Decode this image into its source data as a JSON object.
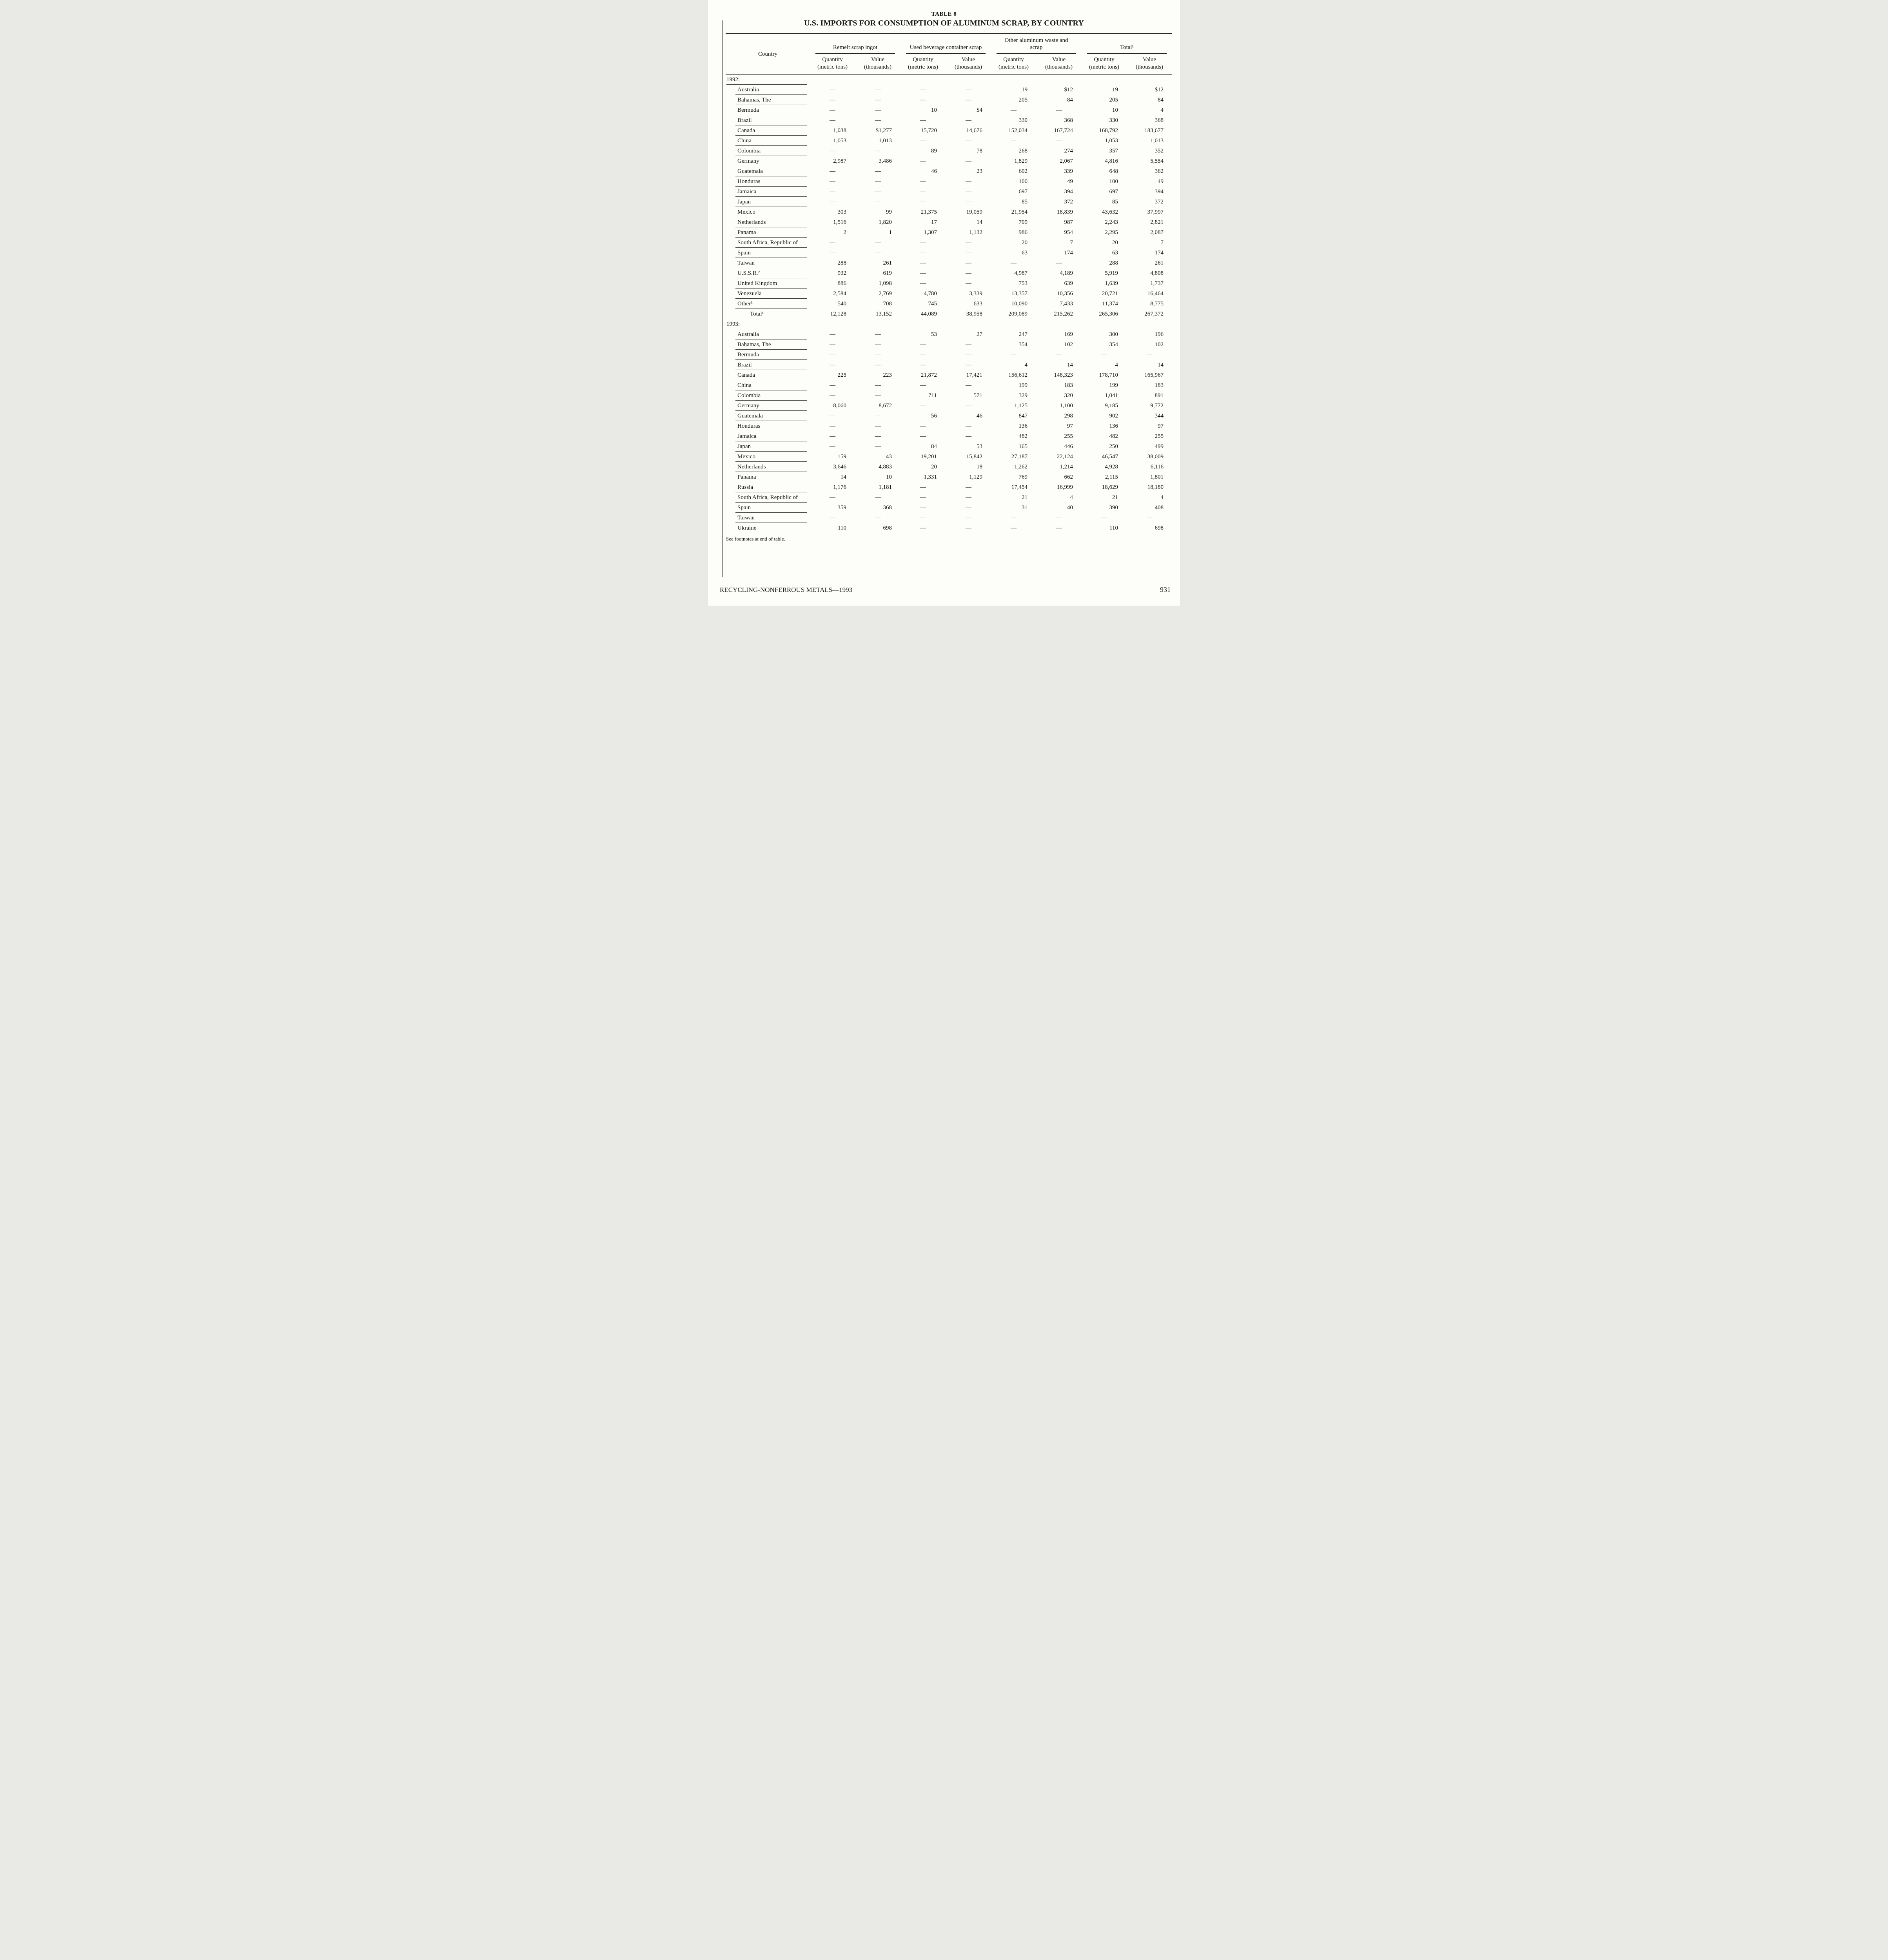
{
  "page": {
    "table_label": "TABLE 8",
    "title": "U.S. IMPORTS FOR CONSUMPTION OF ALUMINUM SCRAP, BY COUNTRY",
    "footnote": "See footnotes at end of table.",
    "footer_left": "RECYCLING-NONFERROUS METALS—1993",
    "page_number": "931"
  },
  "table": {
    "country_header": "Country",
    "col_groups": [
      {
        "label": "Remelt scrap ingot"
      },
      {
        "label": "Used beverage container scrap"
      },
      {
        "label": "Other aluminum waste and scrap"
      },
      {
        "label": "Total¹"
      }
    ],
    "sub_headers": {
      "quantity_1": "Quantity",
      "quantity_2": "(metric tons)",
      "value_1": "Value",
      "value_2": "(thousands)"
    },
    "sections": [
      {
        "year_label": "1992:",
        "rows": [
          {
            "country": "Australia",
            "values": [
              "—",
              "—",
              "—",
              "—",
              "19",
              "$12",
              "19",
              "$12"
            ]
          },
          {
            "country": "Bahamas, The",
            "values": [
              "—",
              "—",
              "—",
              "—",
              "205",
              "84",
              "205",
              "84"
            ]
          },
          {
            "country": "Bermuda",
            "values": [
              "—",
              "—",
              "10",
              "$4",
              "—",
              "—",
              "10",
              "4"
            ]
          },
          {
            "country": "Brazil",
            "values": [
              "—",
              "—",
              "—",
              "—",
              "330",
              "368",
              "330",
              "368"
            ]
          },
          {
            "country": "Canada",
            "values": [
              "1,038",
              "$1,277",
              "15,720",
              "14,676",
              "152,034",
              "167,724",
              "168,792",
              "183,677"
            ]
          },
          {
            "country": "China",
            "values": [
              "1,053",
              "1,013",
              "—",
              "—",
              "—",
              "—",
              "1,053",
              "1,013"
            ]
          },
          {
            "country": "Colombia",
            "values": [
              "—",
              "—",
              "89",
              "78",
              "268",
              "274",
              "357",
              "352"
            ]
          },
          {
            "country": "Germany",
            "values": [
              "2,987",
              "3,486",
              "—",
              "—",
              "1,829",
              "2,067",
              "4,816",
              "5,554"
            ]
          },
          {
            "country": "Guatemala",
            "values": [
              "—",
              "—",
              "46",
              "23",
              "602",
              "339",
              "648",
              "362"
            ]
          },
          {
            "country": "Honduras",
            "values": [
              "—",
              "—",
              "—",
              "—",
              "100",
              "49",
              "100",
              "49"
            ]
          },
          {
            "country": "Jamaica",
            "values": [
              "—",
              "—",
              "—",
              "—",
              "697",
              "394",
              "697",
              "394"
            ]
          },
          {
            "country": "Japan",
            "values": [
              "—",
              "—",
              "—",
              "—",
              "85",
              "372",
              "85",
              "372"
            ]
          },
          {
            "country": "Mexico",
            "values": [
              "303",
              "99",
              "21,375",
              "19,059",
              "21,954",
              "18,839",
              "43,632",
              "37,997"
            ]
          },
          {
            "country": "Netherlands",
            "values": [
              "1,516",
              "1,820",
              "17",
              "14",
              "709",
              "987",
              "2,243",
              "2,821"
            ]
          },
          {
            "country": "Panama",
            "values": [
              "2",
              "1",
              "1,307",
              "1,132",
              "986",
              "954",
              "2,295",
              "2,087"
            ]
          },
          {
            "country": "South Africa, Republic of",
            "values": [
              "—",
              "—",
              "—",
              "—",
              "20",
              "7",
              "20",
              "7"
            ]
          },
          {
            "country": "Spain",
            "values": [
              "—",
              "—",
              "—",
              "—",
              "63",
              "174",
              "63",
              "174"
            ]
          },
          {
            "country": "Taiwan",
            "values": [
              "288",
              "261",
              "—",
              "—",
              "—",
              "—",
              "288",
              "261"
            ]
          },
          {
            "country": "U.S.S.R.²",
            "values": [
              "932",
              "619",
              "—",
              "—",
              "4,987",
              "4,189",
              "5,919",
              "4,808"
            ]
          },
          {
            "country": "United Kingdom",
            "values": [
              "886",
              "1,098",
              "—",
              "—",
              "753",
              "639",
              "1,639",
              "1,737"
            ]
          },
          {
            "country": "Venezuela",
            "values": [
              "2,584",
              "2,769",
              "4,780",
              "3,339",
              "13,357",
              "10,356",
              "20,721",
              "16,464"
            ]
          },
          {
            "country": "Other³",
            "values": [
              "540",
              "708",
              "745",
              "633",
              "10,090",
              "7,433",
              "11,374",
              "8,775"
            ]
          }
        ],
        "total_row": {
          "country": "Total¹",
          "values": [
            "12,128",
            "13,152",
            "44,089",
            "38,958",
            "209,089",
            "215,262",
            "265,306",
            "267,372"
          ]
        }
      },
      {
        "year_label": "1993:",
        "rows": [
          {
            "country": "Australia",
            "values": [
              "—",
              "—",
              "53",
              "27",
              "247",
              "169",
              "300",
              "196"
            ]
          },
          {
            "country": "Bahamas, The",
            "values": [
              "—",
              "—",
              "—",
              "—",
              "354",
              "102",
              "354",
              "102"
            ]
          },
          {
            "country": "Bermuda",
            "values": [
              "—",
              "—",
              "—",
              "—",
              "—",
              "—",
              "—",
              "—"
            ]
          },
          {
            "country": "Brazil",
            "values": [
              "—",
              "—",
              "—",
              "—",
              "4",
              "14",
              "4",
              "14"
            ]
          },
          {
            "country": "Canada",
            "values": [
              "225",
              "223",
              "21,872",
              "17,421",
              "156,612",
              "148,323",
              "178,710",
              "165,967"
            ]
          },
          {
            "country": "China",
            "values": [
              "—",
              "—",
              "—",
              "—",
              "199",
              "183",
              "199",
              "183"
            ]
          },
          {
            "country": "Colombia",
            "values": [
              "—",
              "—",
              "711",
              "571",
              "329",
              "320",
              "1,041",
              "891"
            ]
          },
          {
            "country": "Germany",
            "values": [
              "8,060",
              "8,672",
              "—",
              "—",
              "1,125",
              "1,100",
              "9,185",
              "9,772"
            ]
          },
          {
            "country": "Guatemala",
            "values": [
              "—",
              "—",
              "56",
              "46",
              "847",
              "298",
              "902",
              "344"
            ]
          },
          {
            "country": "Honduras",
            "values": [
              "—",
              "—",
              "—",
              "—",
              "136",
              "97",
              "136",
              "97"
            ]
          },
          {
            "country": "Jamaica",
            "values": [
              "—",
              "—",
              "—",
              "—",
              "482",
              "255",
              "482",
              "255"
            ]
          },
          {
            "country": "Japan",
            "values": [
              "—",
              "—",
              "84",
              "53",
              "165",
              "446",
              "250",
              "499"
            ]
          },
          {
            "country": "Mexico",
            "values": [
              "159",
              "43",
              "19,201",
              "15,842",
              "27,187",
              "22,124",
              "46,547",
              "38,009"
            ]
          },
          {
            "country": "Netherlands",
            "values": [
              "3,646",
              "4,883",
              "20",
              "18",
              "1,262",
              "1,214",
              "4,928",
              "6,116"
            ]
          },
          {
            "country": "Panama",
            "values": [
              "14",
              "10",
              "1,331",
              "1,129",
              "769",
              "662",
              "2,115",
              "1,801"
            ]
          },
          {
            "country": "Russia",
            "values": [
              "1,176",
              "1,181",
              "—",
              "—",
              "17,454",
              "16,999",
              "18,629",
              "18,180"
            ]
          },
          {
            "country": "South Africa, Republic of",
            "values": [
              "—",
              "—",
              "—",
              "—",
              "21",
              "4",
              "21",
              "4"
            ]
          },
          {
            "country": "Spain",
            "values": [
              "359",
              "368",
              "—",
              "—",
              "31",
              "40",
              "390",
              "408"
            ]
          },
          {
            "country": "Taiwan",
            "values": [
              "—",
              "—",
              "—",
              "—",
              "—",
              "—",
              "—",
              "—"
            ]
          },
          {
            "country": "Ukraine",
            "values": [
              "110",
              "698",
              "—",
              "—",
              "—",
              "—",
              "110",
              "698"
            ]
          }
        ]
      }
    ]
  }
}
